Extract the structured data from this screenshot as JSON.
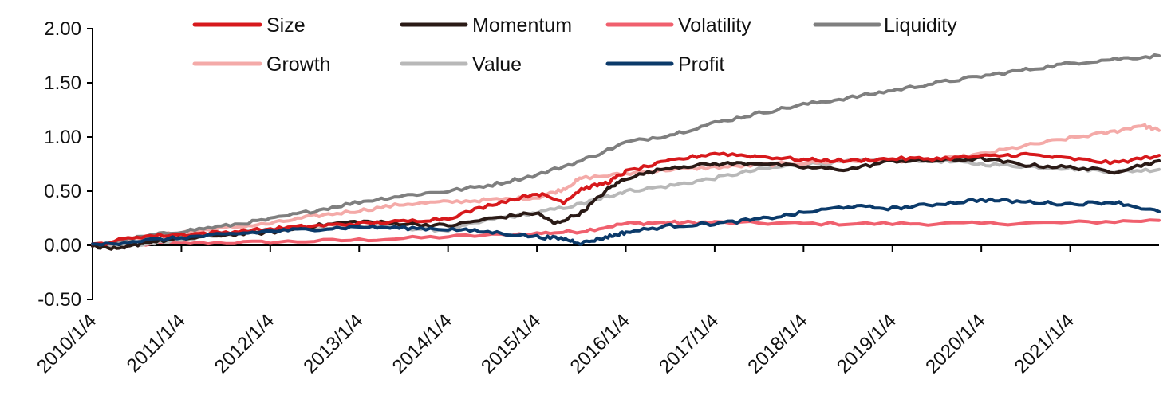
{
  "chart_data": {
    "type": "line",
    "title": "",
    "xlabel": "",
    "ylabel": "",
    "ylim": [
      -0.5,
      2.0
    ],
    "xlim": [
      2010.0,
      2022.0
    ],
    "grid": false,
    "legend": {
      "placement": "top",
      "columns": 4
    },
    "y_ticks": [
      {
        "value": 2.0,
        "label": "2.00"
      },
      {
        "value": 1.5,
        "label": "1.50"
      },
      {
        "value": 1.0,
        "label": "1.00"
      },
      {
        "value": 0.5,
        "label": "0.50"
      },
      {
        "value": 0.0,
        "label": "0.00"
      },
      {
        "value": -0.5,
        "label": "-0.50"
      }
    ],
    "x_ticks": [
      {
        "value": 2010,
        "label": "2010/1/4"
      },
      {
        "value": 2011,
        "label": "2011/1/4"
      },
      {
        "value": 2012,
        "label": "2012/1/4"
      },
      {
        "value": 2013,
        "label": "2013/1/4"
      },
      {
        "value": 2014,
        "label": "2014/1/4"
      },
      {
        "value": 2015,
        "label": "2015/1/4"
      },
      {
        "value": 2016,
        "label": "2016/1/4"
      },
      {
        "value": 2017,
        "label": "2017/1/4"
      },
      {
        "value": 2018,
        "label": "2018/1/4"
      },
      {
        "value": 2019,
        "label": "2019/1/4"
      },
      {
        "value": 2020,
        "label": "2020/1/4"
      },
      {
        "value": 2021,
        "label": "2021/1/4"
      }
    ],
    "series": [
      {
        "name": "Size",
        "color": "#d7191c",
        "x": [
          2010.0,
          2010.5,
          2011.0,
          2011.5,
          2012.0,
          2012.5,
          2013.0,
          2013.5,
          2014.0,
          2014.5,
          2015.0,
          2015.3,
          2015.5,
          2015.8,
          2016.0,
          2016.5,
          2017.0,
          2017.5,
          2018.0,
          2018.5,
          2019.0,
          2019.5,
          2020.0,
          2020.5,
          2021.0,
          2021.5,
          2022.0
        ],
        "values": [
          0.0,
          0.08,
          0.1,
          0.12,
          0.15,
          0.18,
          0.2,
          0.22,
          0.25,
          0.38,
          0.48,
          0.4,
          0.52,
          0.58,
          0.68,
          0.78,
          0.85,
          0.82,
          0.79,
          0.78,
          0.8,
          0.8,
          0.82,
          0.84,
          0.8,
          0.76,
          0.83
        ]
      },
      {
        "name": "Momentum",
        "color": "#2a1a16",
        "x": [
          2010.0,
          2010.3,
          2010.6,
          2011.0,
          2011.5,
          2012.0,
          2012.5,
          2013.0,
          2013.5,
          2014.0,
          2014.5,
          2015.0,
          2015.2,
          2015.5,
          2015.8,
          2016.0,
          2016.5,
          2017.0,
          2017.5,
          2018.0,
          2018.5,
          2019.0,
          2019.5,
          2020.0,
          2020.5,
          2021.0,
          2021.5,
          2022.0
        ],
        "values": [
          0.0,
          -0.04,
          0.03,
          0.06,
          0.1,
          0.12,
          0.18,
          0.22,
          0.2,
          0.18,
          0.25,
          0.3,
          0.2,
          0.3,
          0.52,
          0.62,
          0.72,
          0.75,
          0.76,
          0.72,
          0.7,
          0.78,
          0.78,
          0.8,
          0.74,
          0.72,
          0.68,
          0.78
        ]
      },
      {
        "name": "Volatility",
        "color": "#f0606e",
        "x": [
          2010.0,
          2011.0,
          2012.0,
          2013.0,
          2014.0,
          2015.0,
          2015.5,
          2016.0,
          2016.5,
          2017.0,
          2018.0,
          2019.0,
          2020.0,
          2021.0,
          2022.0
        ],
        "values": [
          0.0,
          0.02,
          0.03,
          0.05,
          0.08,
          0.11,
          0.13,
          0.2,
          0.21,
          0.21,
          0.2,
          0.2,
          0.2,
          0.21,
          0.23
        ]
      },
      {
        "name": "Liquidity",
        "color": "#7f7f7f",
        "x": [
          2010.0,
          2010.5,
          2011.0,
          2011.5,
          2012.0,
          2012.5,
          2013.0,
          2013.5,
          2014.0,
          2014.5,
          2015.0,
          2015.5,
          2016.0,
          2016.5,
          2017.0,
          2017.5,
          2018.0,
          2018.5,
          2019.0,
          2019.5,
          2020.0,
          2020.5,
          2021.0,
          2021.5,
          2022.0
        ],
        "values": [
          0.0,
          0.07,
          0.13,
          0.18,
          0.24,
          0.32,
          0.4,
          0.46,
          0.5,
          0.56,
          0.65,
          0.78,
          0.95,
          1.02,
          1.13,
          1.22,
          1.3,
          1.36,
          1.43,
          1.5,
          1.56,
          1.62,
          1.68,
          1.72,
          1.75
        ]
      },
      {
        "name": "Growth",
        "color": "#f4aaa8",
        "x": [
          2010.0,
          2010.5,
          2011.0,
          2011.5,
          2012.0,
          2012.5,
          2013.0,
          2013.5,
          2014.0,
          2014.5,
          2015.0,
          2015.3,
          2015.5,
          2016.0,
          2016.5,
          2017.0,
          2017.5,
          2018.0,
          2018.5,
          2019.0,
          2019.5,
          2020.0,
          2020.5,
          2021.0,
          2021.5,
          2021.8,
          2022.0
        ],
        "values": [
          0.0,
          0.06,
          0.12,
          0.16,
          0.2,
          0.27,
          0.32,
          0.38,
          0.4,
          0.42,
          0.44,
          0.52,
          0.62,
          0.66,
          0.7,
          0.72,
          0.74,
          0.76,
          0.78,
          0.78,
          0.79,
          0.84,
          0.92,
          0.99,
          1.05,
          1.11,
          1.06
        ]
      },
      {
        "name": "Value",
        "color": "#b8b8b8",
        "x": [
          2010.0,
          2010.5,
          2011.0,
          2011.5,
          2012.0,
          2012.5,
          2013.0,
          2013.5,
          2014.0,
          2014.5,
          2015.0,
          2015.5,
          2015.8,
          2016.0,
          2016.5,
          2017.0,
          2017.5,
          2018.0,
          2018.5,
          2019.0,
          2019.5,
          2020.0,
          2020.5,
          2021.0,
          2021.5,
          2022.0
        ],
        "values": [
          0.0,
          0.0,
          0.06,
          0.1,
          0.14,
          0.16,
          0.18,
          0.16,
          0.14,
          0.24,
          0.3,
          0.38,
          0.45,
          0.5,
          0.55,
          0.62,
          0.7,
          0.75,
          0.77,
          0.79,
          0.78,
          0.75,
          0.73,
          0.71,
          0.68,
          0.7
        ]
      },
      {
        "name": "Profit",
        "color": "#0b3a6a",
        "x": [
          2010.0,
          2010.5,
          2011.0,
          2011.5,
          2012.0,
          2012.5,
          2013.0,
          2013.5,
          2014.0,
          2014.5,
          2015.0,
          2015.3,
          2015.5,
          2015.8,
          2016.0,
          2016.5,
          2017.0,
          2017.5,
          2018.0,
          2018.5,
          2019.0,
          2019.5,
          2020.0,
          2020.5,
          2021.0,
          2021.5,
          2022.0
        ],
        "values": [
          0.0,
          0.04,
          0.07,
          0.1,
          0.13,
          0.15,
          0.17,
          0.16,
          0.15,
          0.12,
          0.08,
          0.06,
          0.02,
          0.08,
          0.12,
          0.18,
          0.2,
          0.24,
          0.3,
          0.36,
          0.34,
          0.38,
          0.42,
          0.4,
          0.38,
          0.4,
          0.31
        ]
      }
    ]
  }
}
